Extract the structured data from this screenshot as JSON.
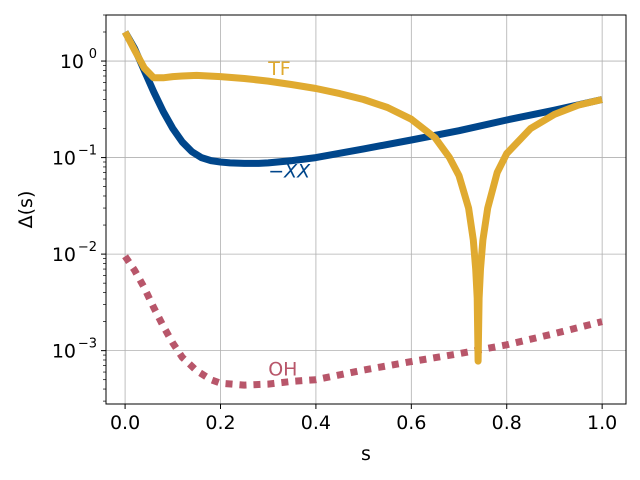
{
  "chart_data": {
    "type": "line",
    "xlabel": "s",
    "ylabel": "Δ(s)",
    "xlim": [
      -0.04,
      1.05
    ],
    "ylim": [
      0.00028,
      3.0
    ],
    "yscale": "log",
    "grid": true,
    "x_ticks": [
      {
        "value": 0.0,
        "label": "0.0"
      },
      {
        "value": 0.2,
        "label": "0.2"
      },
      {
        "value": 0.4,
        "label": "0.4"
      },
      {
        "value": 0.6,
        "label": "0.6"
      },
      {
        "value": 0.8,
        "label": "0.8"
      },
      {
        "value": 1.0,
        "label": "1.0"
      }
    ],
    "y_ticks": [
      {
        "value": 0.001,
        "base": "10",
        "exp": "−3"
      },
      {
        "value": 0.01,
        "base": "10",
        "exp": "−2"
      },
      {
        "value": 0.1,
        "base": "10",
        "exp": "−1"
      },
      {
        "value": 1.0,
        "base": "10",
        "exp": "0"
      }
    ],
    "series": [
      {
        "color": "#00468B",
        "style": "solid",
        "x": [
          0.0,
          0.02,
          0.04,
          0.06,
          0.08,
          0.1,
          0.12,
          0.14,
          0.16,
          0.18,
          0.2,
          0.22,
          0.25,
          0.28,
          0.3,
          0.35,
          0.4,
          0.5,
          0.6,
          0.7,
          0.8,
          0.9,
          1.0
        ],
        "y": [
          2.0,
          1.35,
          0.8,
          0.48,
          0.3,
          0.2,
          0.145,
          0.115,
          0.1,
          0.093,
          0.09,
          0.088,
          0.087,
          0.087,
          0.088,
          0.093,
          0.1,
          0.123,
          0.152,
          0.19,
          0.245,
          0.31,
          0.4
        ]
      },
      {
        "color": "#E0AA30",
        "style": "solid",
        "x": [
          0.0,
          0.02,
          0.04,
          0.06,
          0.08,
          0.1,
          0.12,
          0.15,
          0.2,
          0.25,
          0.3,
          0.35,
          0.4,
          0.45,
          0.5,
          0.55,
          0.6,
          0.65,
          0.68,
          0.7,
          0.72,
          0.73,
          0.735,
          0.738,
          0.74,
          0.742,
          0.745,
          0.75,
          0.76,
          0.78,
          0.8,
          0.85,
          0.9,
          0.95,
          1.0
        ],
        "y": [
          2.0,
          1.3,
          0.85,
          0.67,
          0.67,
          0.69,
          0.7,
          0.71,
          0.69,
          0.66,
          0.62,
          0.57,
          0.52,
          0.46,
          0.4,
          0.33,
          0.25,
          0.16,
          0.1,
          0.065,
          0.03,
          0.014,
          0.007,
          0.0035,
          0.00078,
          0.0035,
          0.007,
          0.014,
          0.03,
          0.07,
          0.11,
          0.2,
          0.28,
          0.35,
          0.4
        ]
      },
      {
        "color": "#B8566A",
        "style": "dotted",
        "x": [
          0.0,
          0.02,
          0.04,
          0.06,
          0.08,
          0.1,
          0.12,
          0.15,
          0.18,
          0.2,
          0.25,
          0.3,
          0.35,
          0.4,
          0.5,
          0.6,
          0.7,
          0.8,
          0.9,
          1.0
        ],
        "y": [
          0.0095,
          0.0068,
          0.0045,
          0.0028,
          0.0018,
          0.0012,
          0.00085,
          0.00062,
          0.0005,
          0.00046,
          0.00044,
          0.00045,
          0.00048,
          0.0005,
          0.00063,
          0.00077,
          0.00093,
          0.00115,
          0.0015,
          0.002
        ]
      }
    ],
    "annotations": [
      {
        "text": "TF",
        "x": 0.3,
        "y": 0.72,
        "color": "#E0AA30",
        "italic": false
      },
      {
        "text": "−XX",
        "x": 0.3,
        "y": 0.062,
        "color": "#00468B",
        "italic": true
      },
      {
        "text": "OH",
        "x": 0.3,
        "y": 0.00055,
        "color": "#B8566A",
        "italic": false
      }
    ]
  }
}
